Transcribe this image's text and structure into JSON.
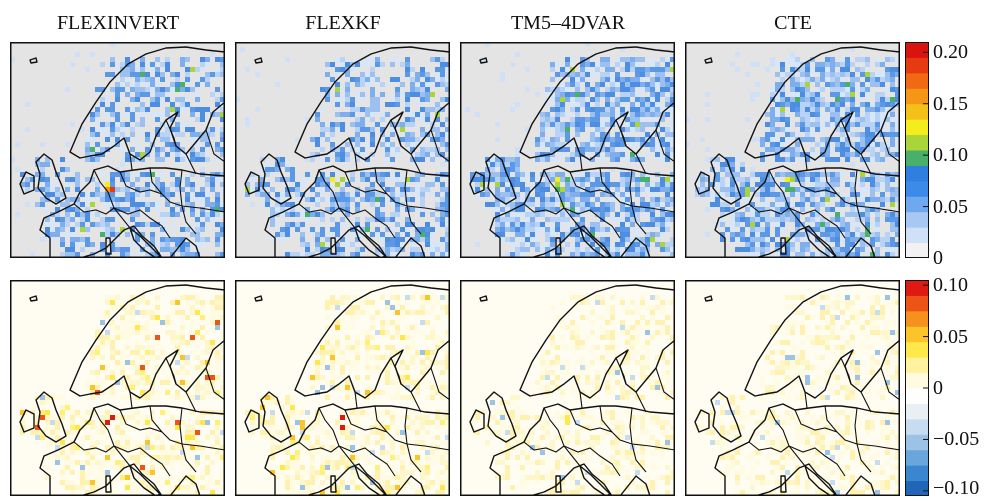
{
  "columns": [
    "FLEXINVERT",
    "FLEXKF",
    "TM5–4DVAR",
    "CTE"
  ],
  "rows": [
    {
      "colorbar": {
        "ticks": [
          "0.20",
          "0.15",
          "0.10",
          "0.05",
          "0"
        ],
        "tick_values": [
          0.2,
          0.15,
          0.1,
          0.05,
          0
        ],
        "range": [
          0,
          0.21
        ],
        "colors": [
          "#f2f2f2",
          "#cfe0f7",
          "#a6c8f2",
          "#6fa8ee",
          "#3d8be8",
          "#2f7fe0",
          "#49b06a",
          "#a9d43a",
          "#f5ec1e",
          "#f5c018",
          "#f59616",
          "#f06a14",
          "#e63b10",
          "#d9140e"
        ]
      }
    },
    {
      "colorbar": {
        "ticks": [
          "0.10",
          "0.05",
          "0",
          "−0.05",
          "−0.10"
        ],
        "tick_values": [
          0.1,
          0.05,
          0,
          -0.05,
          -0.1
        ],
        "range": [
          -0.105,
          0.105
        ],
        "colors": [
          "#1f66b8",
          "#3a86cf",
          "#6aa6dc",
          "#9cc3e6",
          "#c7dcee",
          "#e8f0f6",
          "#ffffff",
          "#fffbe0",
          "#fff3a0",
          "#ffe84a",
          "#fbc52a",
          "#f6901e",
          "#ec5516",
          "#dd1b12"
        ]
      }
    }
  ]
}
